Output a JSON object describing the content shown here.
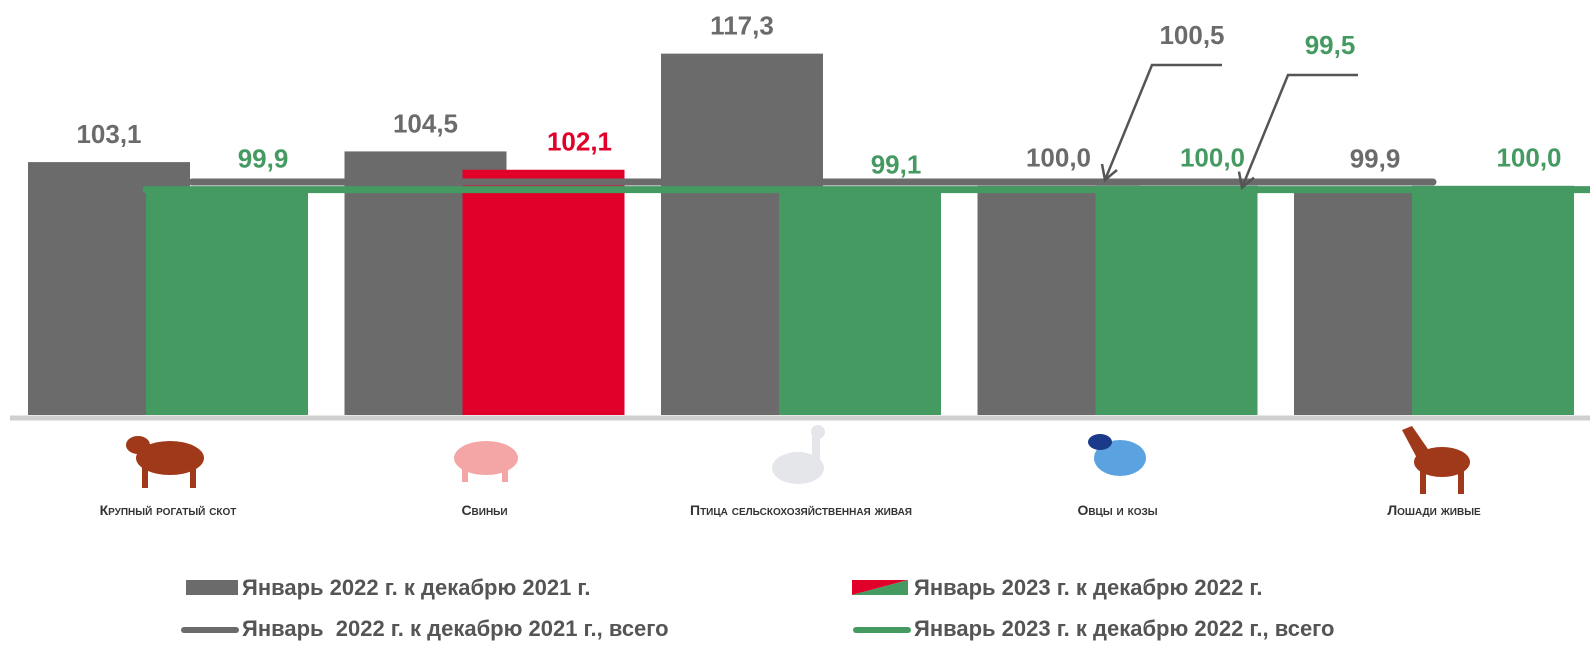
{
  "chart_data": {
    "type": "bar",
    "categories": [
      "Крупный рогатый скот",
      "Свиньи",
      "Птица сельскохозяйственная живая",
      "Овцы и козы",
      "Лошади живые"
    ],
    "ylim": [
      70,
      120
    ],
    "series": [
      {
        "name": "Январь 2022 г. к декабрю 2021 г.",
        "color": "#6b6b6b",
        "values": [
          103.1,
          104.5,
          117.3,
          100.0,
          99.9
        ],
        "value_labels": [
          "103,1",
          "104,5",
          "117,3",
          "100,0",
          "99,9"
        ]
      },
      {
        "name": "Январь 2023 г. к декабрю 2022 г.",
        "colors": [
          "#459a62",
          "#e0002a",
          "#459a62",
          "#459a62",
          "#459a62"
        ],
        "values": [
          99.9,
          102.1,
          99.1,
          100.0,
          100.0
        ],
        "value_labels": [
          "99,9",
          "102,1",
          "99,1",
          "100,0",
          "100,0"
        ]
      }
    ],
    "reference_lines": [
      {
        "name": "Январь  2022 г. к декабрю 2021 г., всего",
        "color": "#6b6b6b",
        "value": 100.5,
        "value_label": "100,5"
      },
      {
        "name": "Январь 2023 г. к декабрю 2022 г., всего",
        "color": "#459a62",
        "value": 99.5,
        "value_label": "99,5"
      }
    ]
  }
}
